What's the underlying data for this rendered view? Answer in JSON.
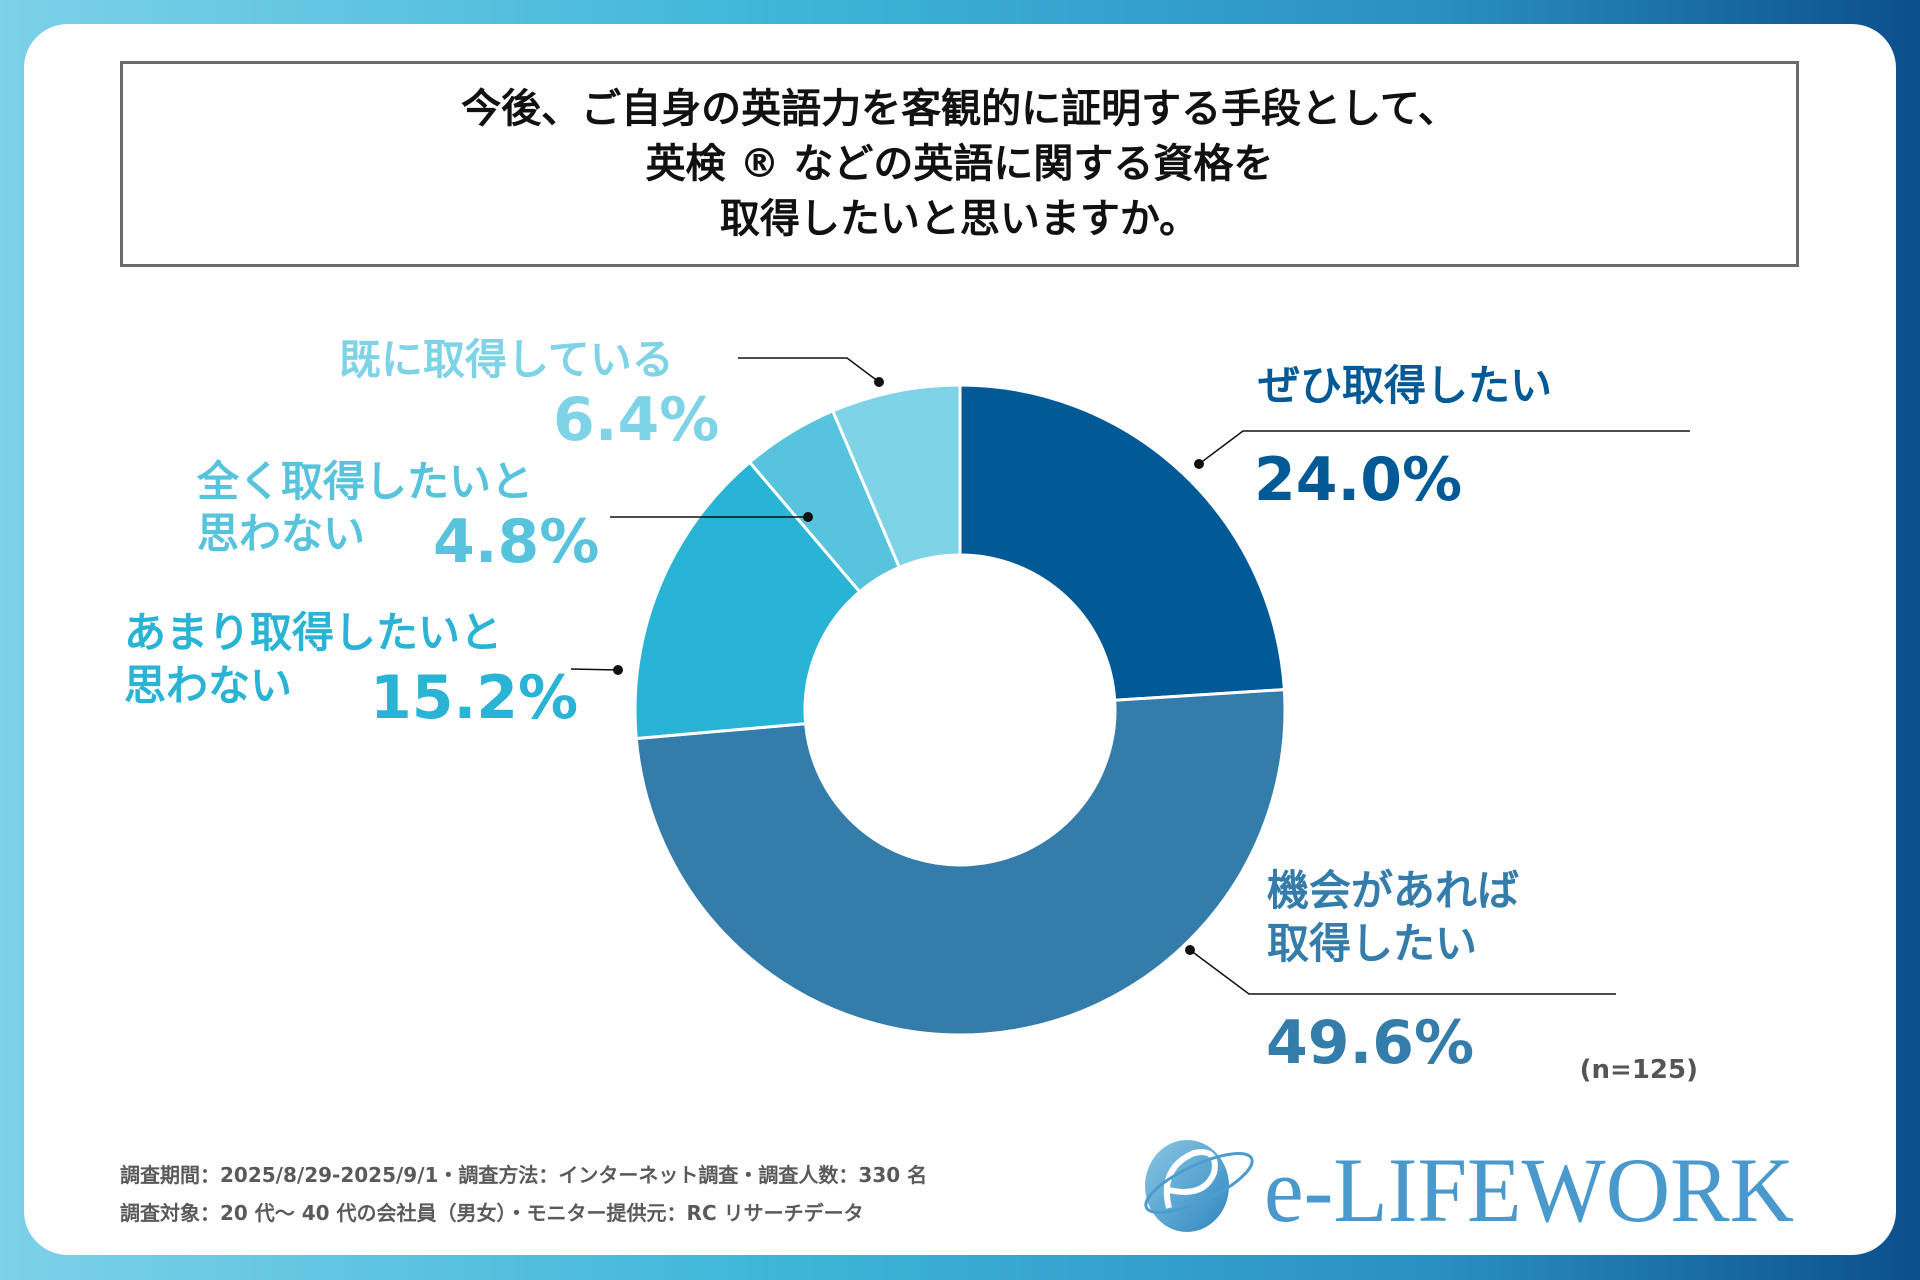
{
  "title_lines": [
    "今後、ご自身の英語力を客観的に証明する手段として、",
    "英検 ® などの英語に関する資格を",
    "取得したいと思いますか。"
  ],
  "chart_data": {
    "type": "pie",
    "variant": "donut",
    "title": "今後、ご自身の英語力を客観的に証明する手段として、英検 ® などの英語に関する資格を取得したいと思いますか。",
    "categories": [
      "ぜひ取得したい",
      "機会があれば取得したい",
      "あまり取得したいと思わない",
      "全く取得したいと思わない",
      "既に取得している"
    ],
    "values": [
      24.0,
      49.6,
      15.2,
      4.8,
      6.4
    ],
    "colors": [
      "#015a96",
      "#347caa",
      "#29b3d4",
      "#57c3dd",
      "#7fd3e7"
    ],
    "labels": [
      {
        "lines": [
          "ぜひ取得したい"
        ],
        "pct": "24.0%"
      },
      {
        "lines": [
          "機会があれば",
          "取得したい"
        ],
        "pct": "49.6%"
      },
      {
        "lines": [
          "あまり取得したいと",
          "思わない"
        ],
        "pct": "15.2%"
      },
      {
        "lines": [
          "全く取得したいと",
          "思わない"
        ],
        "pct": "4.8%"
      },
      {
        "lines": [
          "既に取得している"
        ],
        "pct": "6.4%"
      }
    ],
    "sample": "(n=125)"
  },
  "footer": [
    "調査期間：2025/8/29-2025/9/1・調査方法：インターネット調査・調査人数：330 名",
    "調査対象：20 代～ 40 代の会社員（男女）・モニター提供元：RC リサーチデータ"
  ],
  "logo": "e-LIFEWORK"
}
